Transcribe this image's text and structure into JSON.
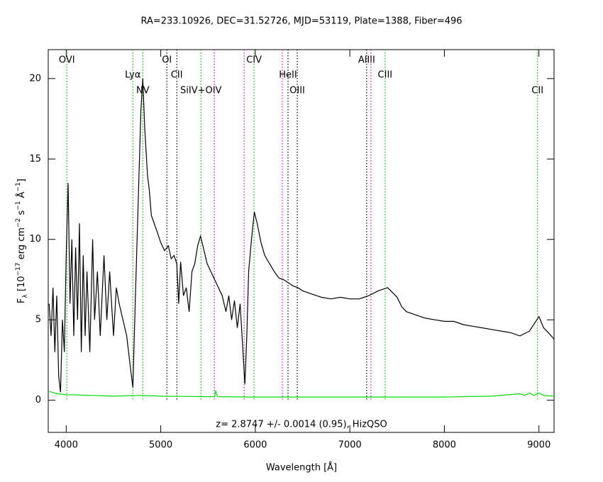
{
  "chart_data": {
    "type": "line",
    "title": "RA=233.10926, DEC=31.52726, MJD=53119, Plate=1388, Fiber=496",
    "x_label": "Wavelength [Å]",
    "y_label": [
      {
        "text": "F",
        "style": "normal"
      },
      {
        "text": "λ",
        "style": "sub"
      },
      {
        "text": " [10",
        "style": "normal"
      },
      {
        "text": "−17",
        "style": "sup"
      },
      {
        "text": " erg cm",
        "style": "normal"
      },
      {
        "text": "−2",
        "style": "sup"
      },
      {
        "text": " s",
        "style": "normal"
      },
      {
        "text": "−1",
        "style": "sup"
      },
      {
        "text": " Å",
        "style": "normal"
      },
      {
        "text": "−1",
        "style": "sup"
      },
      {
        "text": "]",
        "style": "normal"
      }
    ],
    "annotation": "z= 2.8747 +/- 0.0014 (0.95), HizQSO",
    "xlim": [
      3810,
      9160
    ],
    "ylim": [
      -2,
      21.8
    ],
    "xticks": [
      4000,
      5000,
      6000,
      7000,
      8000,
      9000
    ],
    "yticks": [
      0,
      5,
      10,
      15,
      20
    ],
    "series": [
      {
        "color": "#000000",
        "x": [
          3820,
          3840,
          3860,
          3880,
          3900,
          3920,
          3940,
          3960,
          3980,
          4000,
          4020,
          4040,
          4060,
          4080,
          4100,
          4120,
          4140,
          4160,
          4180,
          4200,
          4220,
          4250,
          4280,
          4300,
          4330,
          4360,
          4400,
          4430,
          4460,
          4500,
          4530,
          4560,
          4600,
          4640,
          4680,
          4705,
          4730,
          4760,
          4790,
          4810,
          4830,
          4860,
          4880,
          4900,
          4930,
          4960,
          5000,
          5040,
          5080,
          5110,
          5140,
          5170,
          5190,
          5210,
          5240,
          5270,
          5300,
          5330,
          5360,
          5390,
          5420,
          5450,
          5490,
          5530,
          5570,
          5610,
          5650,
          5690,
          5720,
          5750,
          5780,
          5810,
          5840,
          5870,
          5890,
          5910,
          5930,
          5960,
          5990,
          6020,
          6060,
          6100,
          6150,
          6200,
          6250,
          6300,
          6350,
          6400,
          6450,
          6500,
          6600,
          6700,
          6800,
          6900,
          7000,
          7100,
          7200,
          7300,
          7400,
          7450,
          7500,
          7550,
          7600,
          7700,
          7800,
          7900,
          8000,
          8100,
          8200,
          8300,
          8400,
          8500,
          8600,
          8700,
          8800,
          8900,
          9000,
          9050,
          9100,
          9160
        ],
        "values": [
          6,
          4,
          7,
          3,
          6.5,
          1.5,
          0.5,
          5,
          3,
          9,
          13.5,
          6,
          10,
          4,
          9.5,
          5,
          11,
          3,
          9,
          4,
          8,
          3,
          10,
          5,
          8,
          4,
          9,
          5,
          8,
          4,
          7,
          6,
          5,
          4,
          2,
          0.8,
          6,
          12,
          18,
          20,
          17,
          14,
          13,
          11.5,
          11,
          10.5,
          9.8,
          9.3,
          9.6,
          8.8,
          9,
          8.5,
          6,
          8.6,
          6.5,
          7,
          5.5,
          8,
          8.5,
          9.6,
          10.2,
          9.5,
          8.5,
          8,
          7.5,
          7,
          6.5,
          5.5,
          6.5,
          5,
          6.2,
          4.5,
          6,
          3,
          1,
          4,
          8,
          10,
          11.7,
          11,
          9.8,
          9,
          8.5,
          8,
          7.6,
          7.5,
          7.3,
          7.1,
          7,
          6.8,
          6.6,
          6.4,
          6.3,
          6.4,
          6.3,
          6.3,
          6.5,
          6.8,
          7,
          6.7,
          6.4,
          5.8,
          5.5,
          5.3,
          5.1,
          5,
          4.9,
          4.9,
          4.7,
          4.6,
          4.5,
          4.4,
          4.3,
          4.2,
          4,
          4.3,
          5.2,
          4.5,
          4.2,
          3.8
        ]
      },
      {
        "color": "#00e000",
        "x": [
          3820,
          3900,
          4000,
          4500,
          4800,
          5000,
          5500,
          5570,
          5580,
          5600,
          6000,
          7000,
          8000,
          8500,
          8800,
          8850,
          8900,
          8950,
          9000,
          9050,
          9160
        ],
        "values": [
          0.55,
          0.4,
          0.35,
          0.25,
          0.3,
          0.25,
          0.22,
          0.22,
          0.6,
          0.22,
          0.2,
          0.2,
          0.2,
          0.25,
          0.4,
          0.3,
          0.45,
          0.3,
          0.45,
          0.3,
          0.25
        ]
      }
    ],
    "lines": [
      {
        "x": 4007,
        "label": "OVI",
        "color": "#00c000"
      },
      {
        "x": 4705,
        "label": "Lyα",
        "color": "#00c000"
      },
      {
        "x": 4810,
        "label": "NV",
        "color": "#00c000"
      },
      {
        "x": 5065,
        "label": "OI",
        "color": "#000000"
      },
      {
        "x": 5170,
        "label": "CII",
        "color": "#000000"
      },
      {
        "x": 5425,
        "label": "SiIV+OIV",
        "color": "#00c000"
      },
      {
        "x": 5567,
        "label": null,
        "color": "#d000d0"
      },
      {
        "x": 5882,
        "label": null,
        "color": "#d000d0"
      },
      {
        "x": 5987,
        "label": "CIV",
        "color": "#00c000"
      },
      {
        "x": 6286,
        "label": null,
        "color": "#d000d0"
      },
      {
        "x": 6346,
        "label": "HeII",
        "color": "#000000"
      },
      {
        "x": 6444,
        "label": "OIII",
        "color": "#000000"
      },
      {
        "x": 7178,
        "label": "AlIII",
        "color": "#000000"
      },
      {
        "x": 7223,
        "label": null,
        "color": "#d000d0"
      },
      {
        "x": 7373,
        "label": "CIII",
        "color": "#00c000"
      },
      {
        "x": 8985,
        "label": "CII",
        "color": "#00c000"
      }
    ]
  }
}
